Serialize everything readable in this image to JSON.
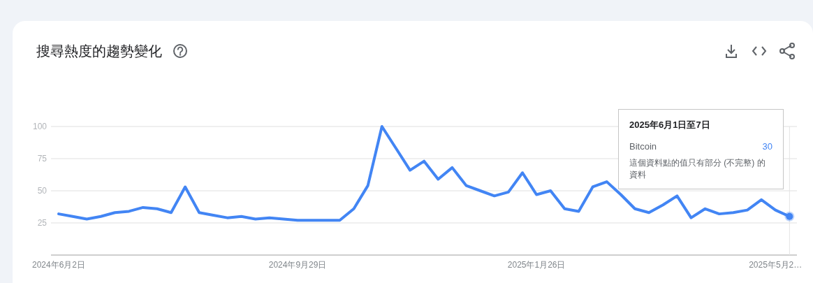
{
  "chart_data": {
    "type": "line",
    "title": "搜尋熱度的趨勢變化",
    "x": [
      "2024-06-02",
      "2024-06-09",
      "2024-06-16",
      "2024-06-23",
      "2024-06-30",
      "2024-07-07",
      "2024-07-14",
      "2024-07-21",
      "2024-07-28",
      "2024-08-04",
      "2024-08-11",
      "2024-08-18",
      "2024-08-25",
      "2024-09-01",
      "2024-09-08",
      "2024-09-15",
      "2024-09-22",
      "2024-09-29",
      "2024-10-06",
      "2024-10-13",
      "2024-10-20",
      "2024-10-27",
      "2024-11-03",
      "2024-11-10",
      "2024-11-17",
      "2024-11-24",
      "2024-12-01",
      "2024-12-08",
      "2024-12-15",
      "2024-12-22",
      "2024-12-29",
      "2025-01-05",
      "2025-01-12",
      "2025-01-19",
      "2025-01-26",
      "2025-02-02",
      "2025-02-09",
      "2025-02-16",
      "2025-02-23",
      "2025-03-02",
      "2025-03-09",
      "2025-03-16",
      "2025-03-23",
      "2025-03-30",
      "2025-04-06",
      "2025-04-13",
      "2025-04-20",
      "2025-04-27",
      "2025-05-04",
      "2025-05-11",
      "2025-05-18",
      "2025-05-25",
      "2025-06-01"
    ],
    "series": [
      {
        "name": "Bitcoin",
        "color": "#4285f4",
        "values": [
          32,
          30,
          28,
          30,
          33,
          34,
          37,
          36,
          33,
          53,
          33,
          31,
          29,
          30,
          28,
          29,
          28,
          27,
          27,
          27,
          27,
          36,
          54,
          100,
          83,
          66,
          73,
          59,
          68,
          54,
          50,
          46,
          49,
          64,
          47,
          50,
          36,
          34,
          53,
          57,
          47,
          36,
          33,
          39,
          46,
          29,
          36,
          32,
          33,
          35,
          43,
          35,
          30
        ]
      },
      {
        "type": "scatter",
        "x": [
          "2025-06-01"
        ],
        "color": "#4285f4",
        "marker": "circle",
        "values": [
          30
        ]
      }
    ],
    "xlim": [
      "2024-05-29T04:00",
      "2025-06-04T17:00"
    ],
    "xticks": [
      {
        "value": "2024-06-02",
        "label": "2024年6月2日"
      },
      {
        "value": "2024-09-29",
        "label": "2024年9月29日"
      },
      {
        "value": "2025-01-26",
        "label": "2025年1月26日"
      },
      {
        "value": "2025-05-25",
        "label": "2025年5月2…"
      }
    ],
    "ylim": [
      0,
      100
    ],
    "yticks": [
      25,
      50,
      75,
      100
    ],
    "grid": "y",
    "ref_lines": [
      {
        "axis": "x",
        "value": "2025-06-01",
        "color": "#e3e3e3"
      }
    ],
    "annotations": [
      "2025年6月1日至7日",
      "30",
      "這個資料點的值只有部分 (不完整) 的資料"
    ]
  }
}
